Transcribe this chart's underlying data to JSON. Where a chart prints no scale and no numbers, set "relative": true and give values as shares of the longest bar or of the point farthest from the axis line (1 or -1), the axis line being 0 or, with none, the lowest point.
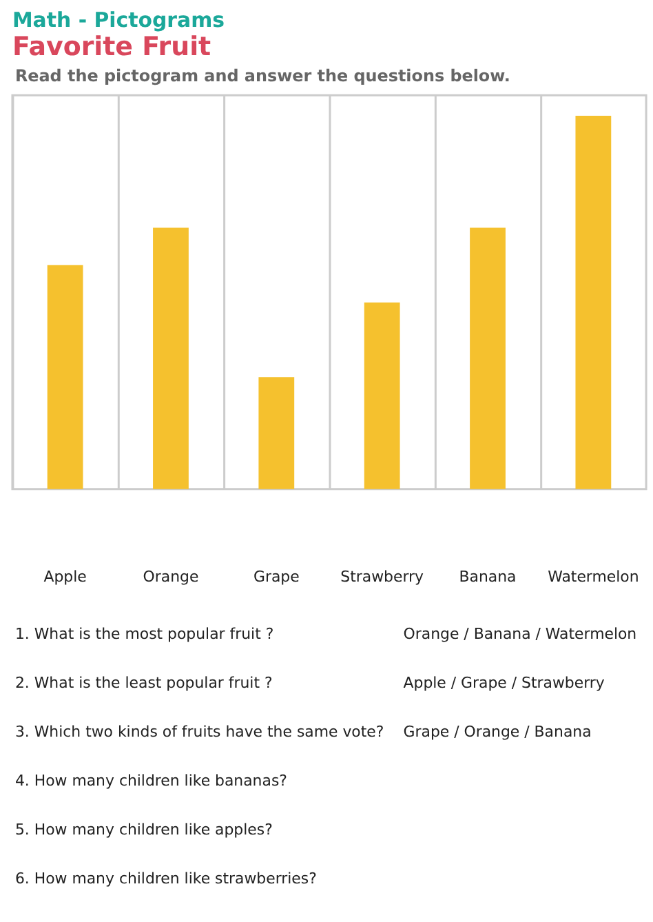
{
  "chart_data": {
    "type": "bar",
    "title": "Math - Pictograms",
    "subtitle": "Favorite Fruit",
    "categories": [
      "Apple",
      "Orange",
      "Grape",
      "Strawberry",
      "Banana",
      "Watermelon"
    ],
    "values": [
      0.6,
      0.7,
      0.3,
      0.5,
      0.7,
      1
    ],
    "relative": true,
    "color": "#f5c12e",
    "grid": "x",
    "annotations": [
      "Read the pictogram and answer the questions below.",
      "1. What is the most popular fruit ?",
      "Orange / Banana / Watermelon",
      "2. What is the least popular fruit ?",
      "Apple / Grape / Strawberry",
      "3. Which two kinds of fruits have the same vote?",
      "Grape / Orange / Banana",
      "4. How many children like bananas?",
      "5. How many children like apples?",
      "6. How many children like strawberries?"
    ]
  }
}
